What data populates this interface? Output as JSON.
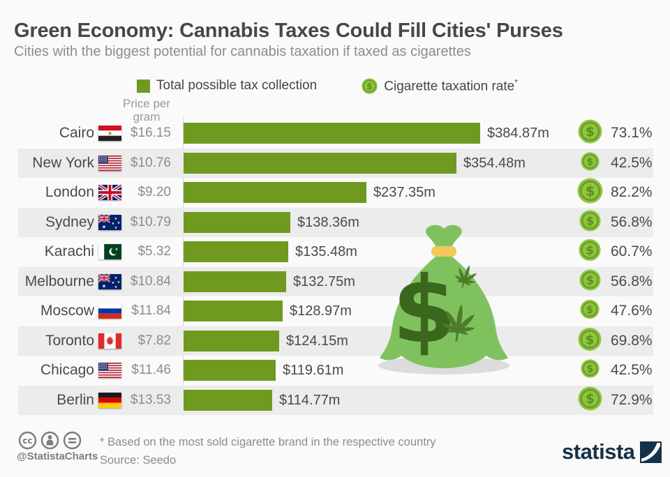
{
  "header": {
    "title": "Green Economy: Cannabis Taxes Could Fill Cities' Purses",
    "subtitle": "Cities with the biggest potential for cannabis taxation if taxed as cigarettes"
  },
  "legend": {
    "bar_label": "Total possible tax collection",
    "coin_label": "Cigarette taxation rate",
    "coin_label_superscript": "*"
  },
  "chart_data": {
    "type": "bar",
    "orientation": "horizontal",
    "price_header_line1": "Price per",
    "price_header_line2": "gram",
    "value_unit": "million USD",
    "rate_unit": "percent",
    "rows": [
      {
        "city": "Cairo",
        "flag": "egypt",
        "price_per_gram": "$16.15",
        "tax_collection_m": 384.87,
        "tax_collection_label": "$384.87m",
        "cigarette_tax_rate_pct": 73.1,
        "cigarette_tax_rate_label": "73.1%"
      },
      {
        "city": "New York",
        "flag": "usa",
        "price_per_gram": "$10.76",
        "tax_collection_m": 354.48,
        "tax_collection_label": "$354.48m",
        "cigarette_tax_rate_pct": 42.5,
        "cigarette_tax_rate_label": "42.5%"
      },
      {
        "city": "London",
        "flag": "uk",
        "price_per_gram": "$9.20",
        "tax_collection_m": 237.35,
        "tax_collection_label": "$237.35m",
        "cigarette_tax_rate_pct": 82.2,
        "cigarette_tax_rate_label": "82.2%"
      },
      {
        "city": "Sydney",
        "flag": "australia",
        "price_per_gram": "$10.79",
        "tax_collection_m": 138.36,
        "tax_collection_label": "$138.36m",
        "cigarette_tax_rate_pct": 56.8,
        "cigarette_tax_rate_label": "56.8%"
      },
      {
        "city": "Karachi",
        "flag": "pakistan",
        "price_per_gram": "$5.32",
        "tax_collection_m": 135.48,
        "tax_collection_label": "$135.48m",
        "cigarette_tax_rate_pct": 60.7,
        "cigarette_tax_rate_label": "60.7%"
      },
      {
        "city": "Melbourne",
        "flag": "australia",
        "price_per_gram": "$10.84",
        "tax_collection_m": 132.75,
        "tax_collection_label": "$132.75m",
        "cigarette_tax_rate_pct": 56.8,
        "cigarette_tax_rate_label": "56.8%"
      },
      {
        "city": "Moscow",
        "flag": "russia",
        "price_per_gram": "$11.84",
        "tax_collection_m": 128.97,
        "tax_collection_label": "$128.97m",
        "cigarette_tax_rate_pct": 47.6,
        "cigarette_tax_rate_label": "47.6%"
      },
      {
        "city": "Toronto",
        "flag": "canada",
        "price_per_gram": "$7.82",
        "tax_collection_m": 124.15,
        "tax_collection_label": "$124.15m",
        "cigarette_tax_rate_pct": 69.8,
        "cigarette_tax_rate_label": "69.8%"
      },
      {
        "city": "Chicago",
        "flag": "usa",
        "price_per_gram": "$11.46",
        "tax_collection_m": 119.61,
        "tax_collection_label": "$119.61m",
        "cigarette_tax_rate_pct": 42.5,
        "cigarette_tax_rate_label": "42.5%"
      },
      {
        "city": "Berlin",
        "flag": "germany",
        "price_per_gram": "$13.53",
        "tax_collection_m": 114.77,
        "tax_collection_label": "$114.77m",
        "cigarette_tax_rate_pct": 72.9,
        "cigarette_tax_rate_label": "72.9%"
      }
    ],
    "colors": {
      "bar": "#6f9a1f",
      "stripe": "#ececec",
      "coin_fill": "#8dc63f",
      "coin_ring": "#6f9d27",
      "coin_dollar": "#5d8d1e",
      "bag_body": "#7fc25d",
      "bag_band": "#f5c75b",
      "bag_dollar": "#3b661e",
      "bag_leaf": "#4d7d2b"
    }
  },
  "footer": {
    "footnote": "* Based on the most sold cigarette brand in the respective country",
    "source": "Source: Seedo",
    "credit": "@StatistaCharts",
    "brand": "statista"
  }
}
